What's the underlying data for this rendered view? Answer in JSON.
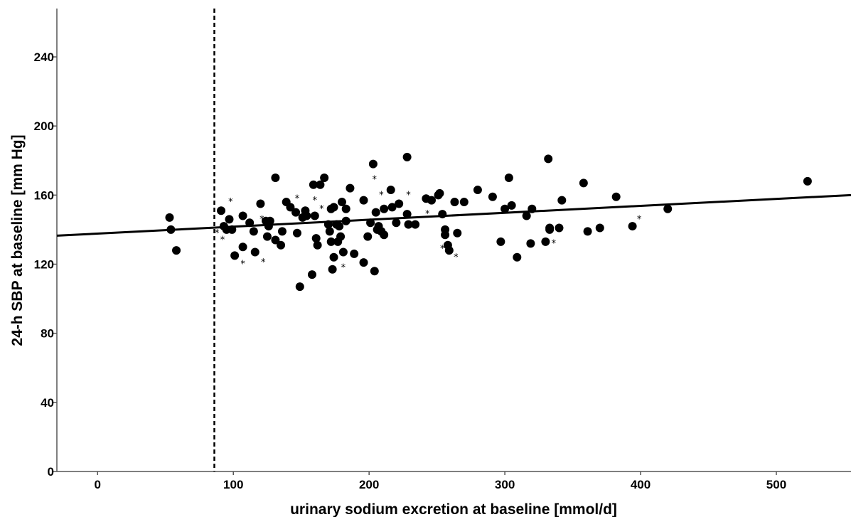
{
  "chart_data": {
    "type": "scatter",
    "title": "",
    "xlabel": "urinary sodium excretion at baseline [mmol/d]",
    "ylabel": "24-h SBP at baseline [mm Hg]",
    "xlim": [
      -30,
      555
    ],
    "ylim": [
      0,
      268
    ],
    "xticks": [
      0,
      100,
      200,
      300,
      400,
      500
    ],
    "yticks": [
      0,
      40,
      80,
      120,
      160,
      200,
      240
    ],
    "grid": false,
    "reference_line_x": 86,
    "fit_line": {
      "x": [
        -30,
        555
      ],
      "y": [
        136.5,
        160
      ]
    },
    "points": [
      [
        53,
        147
      ],
      [
        54,
        140
      ],
      [
        58,
        128
      ],
      [
        91,
        151
      ],
      [
        93,
        142
      ],
      [
        95,
        140
      ],
      [
        97,
        146
      ],
      [
        99,
        140
      ],
      [
        101,
        125
      ],
      [
        107,
        148
      ],
      [
        107,
        130
      ],
      [
        112,
        144
      ],
      [
        115,
        139
      ],
      [
        116,
        127
      ],
      [
        120,
        155
      ],
      [
        124,
        145
      ],
      [
        125,
        136
      ],
      [
        126,
        142
      ],
      [
        127,
        145
      ],
      [
        131,
        170
      ],
      [
        131,
        134
      ],
      [
        135,
        131
      ],
      [
        136,
        139
      ],
      [
        139,
        156
      ],
      [
        142,
        153
      ],
      [
        146,
        150
      ],
      [
        147,
        138
      ],
      [
        149,
        107
      ],
      [
        151,
        147
      ],
      [
        153,
        151
      ],
      [
        154,
        148
      ],
      [
        158,
        114
      ],
      [
        159,
        166
      ],
      [
        160,
        148
      ],
      [
        161,
        135
      ],
      [
        162,
        131
      ],
      [
        164,
        166
      ],
      [
        167,
        170
      ],
      [
        170,
        143
      ],
      [
        171,
        139
      ],
      [
        172,
        152
      ],
      [
        172,
        133
      ],
      [
        173,
        117
      ],
      [
        174,
        153
      ],
      [
        174,
        124
      ],
      [
        176,
        143
      ],
      [
        177,
        133
      ],
      [
        178,
        142
      ],
      [
        179,
        136
      ],
      [
        180,
        156
      ],
      [
        181,
        127
      ],
      [
        183,
        145
      ],
      [
        183,
        152
      ],
      [
        186,
        164
      ],
      [
        189,
        126
      ],
      [
        196,
        157
      ],
      [
        196,
        121
      ],
      [
        199,
        136
      ],
      [
        201,
        144
      ],
      [
        203,
        178
      ],
      [
        204,
        116
      ],
      [
        205,
        150
      ],
      [
        206,
        140
      ],
      [
        207,
        142
      ],
      [
        209,
        139
      ],
      [
        211,
        152
      ],
      [
        211,
        137
      ],
      [
        216,
        163
      ],
      [
        217,
        153
      ],
      [
        220,
        144
      ],
      [
        222,
        155
      ],
      [
        228,
        182
      ],
      [
        228,
        149
      ],
      [
        229,
        143
      ],
      [
        234,
        143
      ],
      [
        242,
        158
      ],
      [
        246,
        157
      ],
      [
        251,
        160
      ],
      [
        252,
        161
      ],
      [
        254,
        149
      ],
      [
        256,
        140
      ],
      [
        256,
        137
      ],
      [
        258,
        131
      ],
      [
        259,
        128
      ],
      [
        263,
        156
      ],
      [
        265,
        138
      ],
      [
        270,
        156
      ],
      [
        280,
        163
      ],
      [
        291,
        159
      ],
      [
        297,
        133
      ],
      [
        300,
        152
      ],
      [
        303,
        170
      ],
      [
        305,
        154
      ],
      [
        309,
        124
      ],
      [
        316,
        148
      ],
      [
        319,
        132
      ],
      [
        320,
        152
      ],
      [
        330,
        133
      ],
      [
        332,
        181
      ],
      [
        333,
        141
      ],
      [
        333,
        140
      ],
      [
        340,
        141
      ],
      [
        342,
        157
      ],
      [
        358,
        167
      ],
      [
        361,
        139
      ],
      [
        370,
        141
      ],
      [
        382,
        159
      ],
      [
        394,
        142
      ],
      [
        420,
        152
      ],
      [
        523,
        168
      ]
    ],
    "star_markers": [
      [
        88,
        140
      ],
      [
        92,
        136
      ],
      [
        98,
        158
      ],
      [
        107,
        122
      ],
      [
        121,
        148
      ],
      [
        122,
        123
      ],
      [
        147,
        160
      ],
      [
        160,
        159
      ],
      [
        165,
        154
      ],
      [
        181,
        120
      ],
      [
        204,
        171
      ],
      [
        209,
        162
      ],
      [
        229,
        162
      ],
      [
        243,
        151
      ],
      [
        254,
        131
      ],
      [
        264,
        126
      ],
      [
        336,
        134
      ],
      [
        399,
        148
      ]
    ]
  }
}
